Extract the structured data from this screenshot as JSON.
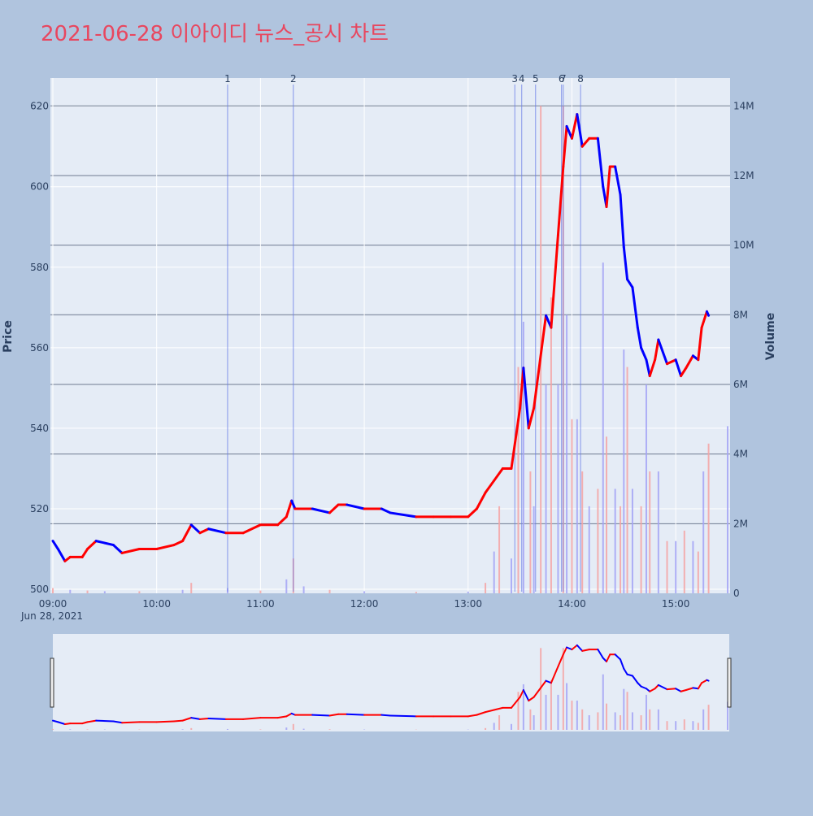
{
  "chart_data": {
    "type": "candlestick",
    "title": "2021-06-28 이아이디 뉴스_공시 차트",
    "xlabel": "",
    "ylabel": "Price",
    "y2label": "Volume",
    "date_label": "Jun 28, 2021",
    "x_ticks": [
      "09:00",
      "10:00",
      "11:00",
      "12:00",
      "13:00",
      "14:00",
      "15:00"
    ],
    "y_ticks": [
      500,
      520,
      540,
      560,
      580,
      600,
      620
    ],
    "ylim": [
      499,
      627
    ],
    "y2_ticks": [
      "0",
      "2M",
      "4M",
      "6M",
      "8M",
      "10M",
      "12M",
      "14M"
    ],
    "y2_values": [
      0,
      2000000,
      4000000,
      6000000,
      8000000,
      10000000,
      12000000,
      14000000
    ],
    "y2lim": [
      0,
      14800000
    ],
    "time_range": [
      "09:00",
      "15:30"
    ],
    "up_color": "#ff0000",
    "down_color": "#0000ff",
    "news_markers": [
      {
        "label": "1",
        "time": "10:41"
      },
      {
        "label": "2",
        "time": "11:19"
      },
      {
        "label": "3",
        "time": "13:27"
      },
      {
        "label": "4",
        "time": "13:31"
      },
      {
        "label": "5",
        "time": "13:39"
      },
      {
        "label": "6",
        "time": "13:54"
      },
      {
        "label": "7",
        "time": "13:55"
      },
      {
        "label": "8",
        "time": "14:05"
      }
    ],
    "price_series": [
      {
        "t": "09:00",
        "p": 512
      },
      {
        "t": "09:03",
        "p": 510
      },
      {
        "t": "09:07",
        "p": 507
      },
      {
        "t": "09:10",
        "p": 508
      },
      {
        "t": "09:17",
        "p": 508
      },
      {
        "t": "09:20",
        "p": 510
      },
      {
        "t": "09:25",
        "p": 512
      },
      {
        "t": "09:35",
        "p": 511
      },
      {
        "t": "09:40",
        "p": 509
      },
      {
        "t": "09:50",
        "p": 510
      },
      {
        "t": "10:00",
        "p": 510
      },
      {
        "t": "10:10",
        "p": 511
      },
      {
        "t": "10:15",
        "p": 512
      },
      {
        "t": "10:20",
        "p": 516
      },
      {
        "t": "10:25",
        "p": 514
      },
      {
        "t": "10:30",
        "p": 515
      },
      {
        "t": "10:40",
        "p": 514
      },
      {
        "t": "10:50",
        "p": 514
      },
      {
        "t": "11:00",
        "p": 516
      },
      {
        "t": "11:10",
        "p": 516
      },
      {
        "t": "11:15",
        "p": 518
      },
      {
        "t": "11:18",
        "p": 522
      },
      {
        "t": "11:20",
        "p": 520
      },
      {
        "t": "11:30",
        "p": 520
      },
      {
        "t": "11:40",
        "p": 519
      },
      {
        "t": "11:45",
        "p": 521
      },
      {
        "t": "11:50",
        "p": 521
      },
      {
        "t": "12:00",
        "p": 520
      },
      {
        "t": "12:10",
        "p": 520
      },
      {
        "t": "12:15",
        "p": 519
      },
      {
        "t": "12:30",
        "p": 518
      },
      {
        "t": "12:40",
        "p": 518
      },
      {
        "t": "12:50",
        "p": 518
      },
      {
        "t": "13:00",
        "p": 518
      },
      {
        "t": "13:05",
        "p": 520
      },
      {
        "t": "13:10",
        "p": 524
      },
      {
        "t": "13:15",
        "p": 527
      },
      {
        "t": "13:20",
        "p": 530
      },
      {
        "t": "13:25",
        "p": 530
      },
      {
        "t": "13:30",
        "p": 545
      },
      {
        "t": "13:32",
        "p": 555
      },
      {
        "t": "13:35",
        "p": 540
      },
      {
        "t": "13:38",
        "p": 545
      },
      {
        "t": "13:45",
        "p": 568
      },
      {
        "t": "13:48",
        "p": 565
      },
      {
        "t": "13:52",
        "p": 588
      },
      {
        "t": "13:55",
        "p": 605
      },
      {
        "t": "13:57",
        "p": 615
      },
      {
        "t": "14:00",
        "p": 612
      },
      {
        "t": "14:03",
        "p": 618
      },
      {
        "t": "14:06",
        "p": 610
      },
      {
        "t": "14:10",
        "p": 612
      },
      {
        "t": "14:15",
        "p": 612
      },
      {
        "t": "14:18",
        "p": 600
      },
      {
        "t": "14:20",
        "p": 595
      },
      {
        "t": "14:22",
        "p": 605
      },
      {
        "t": "14:25",
        "p": 605
      },
      {
        "t": "14:28",
        "p": 598
      },
      {
        "t": "14:30",
        "p": 585
      },
      {
        "t": "14:32",
        "p": 577
      },
      {
        "t": "14:35",
        "p": 575
      },
      {
        "t": "14:38",
        "p": 565
      },
      {
        "t": "14:40",
        "p": 560
      },
      {
        "t": "14:43",
        "p": 557
      },
      {
        "t": "14:45",
        "p": 553
      },
      {
        "t": "14:48",
        "p": 557
      },
      {
        "t": "14:50",
        "p": 562
      },
      {
        "t": "14:55",
        "p": 556
      },
      {
        "t": "15:00",
        "p": 557
      },
      {
        "t": "15:03",
        "p": 553
      },
      {
        "t": "15:06",
        "p": 555
      },
      {
        "t": "15:10",
        "p": 558
      },
      {
        "t": "15:13",
        "p": 557
      },
      {
        "t": "15:15",
        "p": 565
      },
      {
        "t": "15:18",
        "p": 569
      },
      {
        "t": "15:19",
        "p": 568
      }
    ],
    "volume_series": [
      {
        "t": "09:00",
        "v": 150000
      },
      {
        "t": "09:10",
        "v": 100000
      },
      {
        "t": "09:20",
        "v": 80000
      },
      {
        "t": "09:30",
        "v": 60000
      },
      {
        "t": "09:50",
        "v": 60000
      },
      {
        "t": "10:15",
        "v": 100000
      },
      {
        "t": "10:20",
        "v": 300000
      },
      {
        "t": "10:41",
        "v": 150000
      },
      {
        "t": "11:00",
        "v": 80000
      },
      {
        "t": "11:15",
        "v": 400000
      },
      {
        "t": "11:19",
        "v": 1000000
      },
      {
        "t": "11:25",
        "v": 200000
      },
      {
        "t": "11:40",
        "v": 100000
      },
      {
        "t": "12:00",
        "v": 60000
      },
      {
        "t": "12:30",
        "v": 40000
      },
      {
        "t": "13:00",
        "v": 50000
      },
      {
        "t": "13:10",
        "v": 300000
      },
      {
        "t": "13:15",
        "v": 1200000
      },
      {
        "t": "13:18",
        "v": 2500000
      },
      {
        "t": "13:25",
        "v": 1000000
      },
      {
        "t": "13:29",
        "v": 6500000
      },
      {
        "t": "13:32",
        "v": 7800000
      },
      {
        "t": "13:36",
        "v": 3500000
      },
      {
        "t": "13:38",
        "v": 2500000
      },
      {
        "t": "13:42",
        "v": 14000000
      },
      {
        "t": "13:45",
        "v": 6000000
      },
      {
        "t": "13:48",
        "v": 8500000
      },
      {
        "t": "13:52",
        "v": 6000000
      },
      {
        "t": "13:55",
        "v": 14000000
      },
      {
        "t": "13:57",
        "v": 8000000
      },
      {
        "t": "14:00",
        "v": 5000000
      },
      {
        "t": "14:03",
        "v": 5000000
      },
      {
        "t": "14:06",
        "v": 3500000
      },
      {
        "t": "14:10",
        "v": 2500000
      },
      {
        "t": "14:15",
        "v": 3000000
      },
      {
        "t": "14:18",
        "v": 9500000
      },
      {
        "t": "14:20",
        "v": 4500000
      },
      {
        "t": "14:25",
        "v": 3000000
      },
      {
        "t": "14:28",
        "v": 2500000
      },
      {
        "t": "14:30",
        "v": 7000000
      },
      {
        "t": "14:32",
        "v": 6500000
      },
      {
        "t": "14:35",
        "v": 3000000
      },
      {
        "t": "14:40",
        "v": 2500000
      },
      {
        "t": "14:43",
        "v": 6000000
      },
      {
        "t": "14:45",
        "v": 3500000
      },
      {
        "t": "14:50",
        "v": 3500000
      },
      {
        "t": "14:55",
        "v": 1500000
      },
      {
        "t": "15:00",
        "v": 1500000
      },
      {
        "t": "15:05",
        "v": 1800000
      },
      {
        "t": "15:10",
        "v": 1500000
      },
      {
        "t": "15:13",
        "v": 1200000
      },
      {
        "t": "15:16",
        "v": 3500000
      },
      {
        "t": "15:19",
        "v": 4300000
      },
      {
        "t": "15:30",
        "v": 4800000
      }
    ]
  }
}
